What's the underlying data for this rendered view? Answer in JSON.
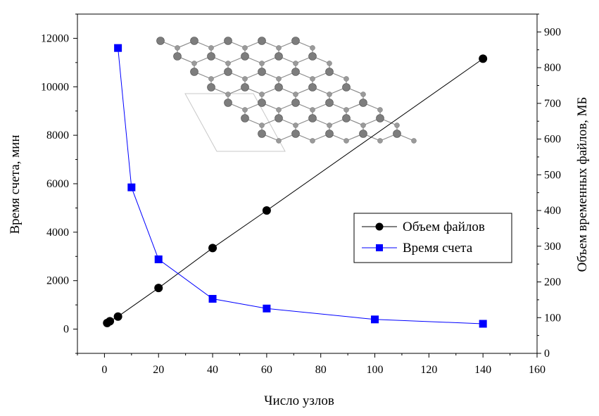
{
  "chart_data": {
    "type": "line",
    "xlabel": "Число узлов",
    "ylabel_left": "Время счета, мин",
    "ylabel_right": "Объем временных файлов, МБ",
    "xlim": [
      -10,
      160
    ],
    "ylim_left": [
      -1000,
      13000
    ],
    "ylim_right": [
      0,
      950
    ],
    "x_ticks": [
      0,
      20,
      40,
      60,
      80,
      100,
      120,
      140,
      160
    ],
    "y_left_ticks": [
      0,
      2000,
      4000,
      6000,
      8000,
      10000,
      12000
    ],
    "y_right_ticks": [
      0,
      100,
      200,
      300,
      400,
      500,
      600,
      700,
      800,
      900
    ],
    "series": [
      {
        "name": "Объем файлов",
        "axis": "right",
        "color": "#000000",
        "marker": "circle",
        "x": [
          1,
          2,
          5,
          20,
          40,
          60,
          140
        ],
        "y": [
          85,
          90,
          103,
          183,
          295,
          400,
          825
        ]
      },
      {
        "name": "Время счета",
        "axis": "left",
        "color": "#0000ff",
        "marker": "square",
        "x": [
          5,
          10,
          20,
          40,
          60,
          100,
          140
        ],
        "y": [
          11600,
          5850,
          2880,
          1250,
          850,
          400,
          220
        ]
      }
    ],
    "legend_position": "right-center",
    "grid": false,
    "inset": "molecular-lattice-structure"
  }
}
